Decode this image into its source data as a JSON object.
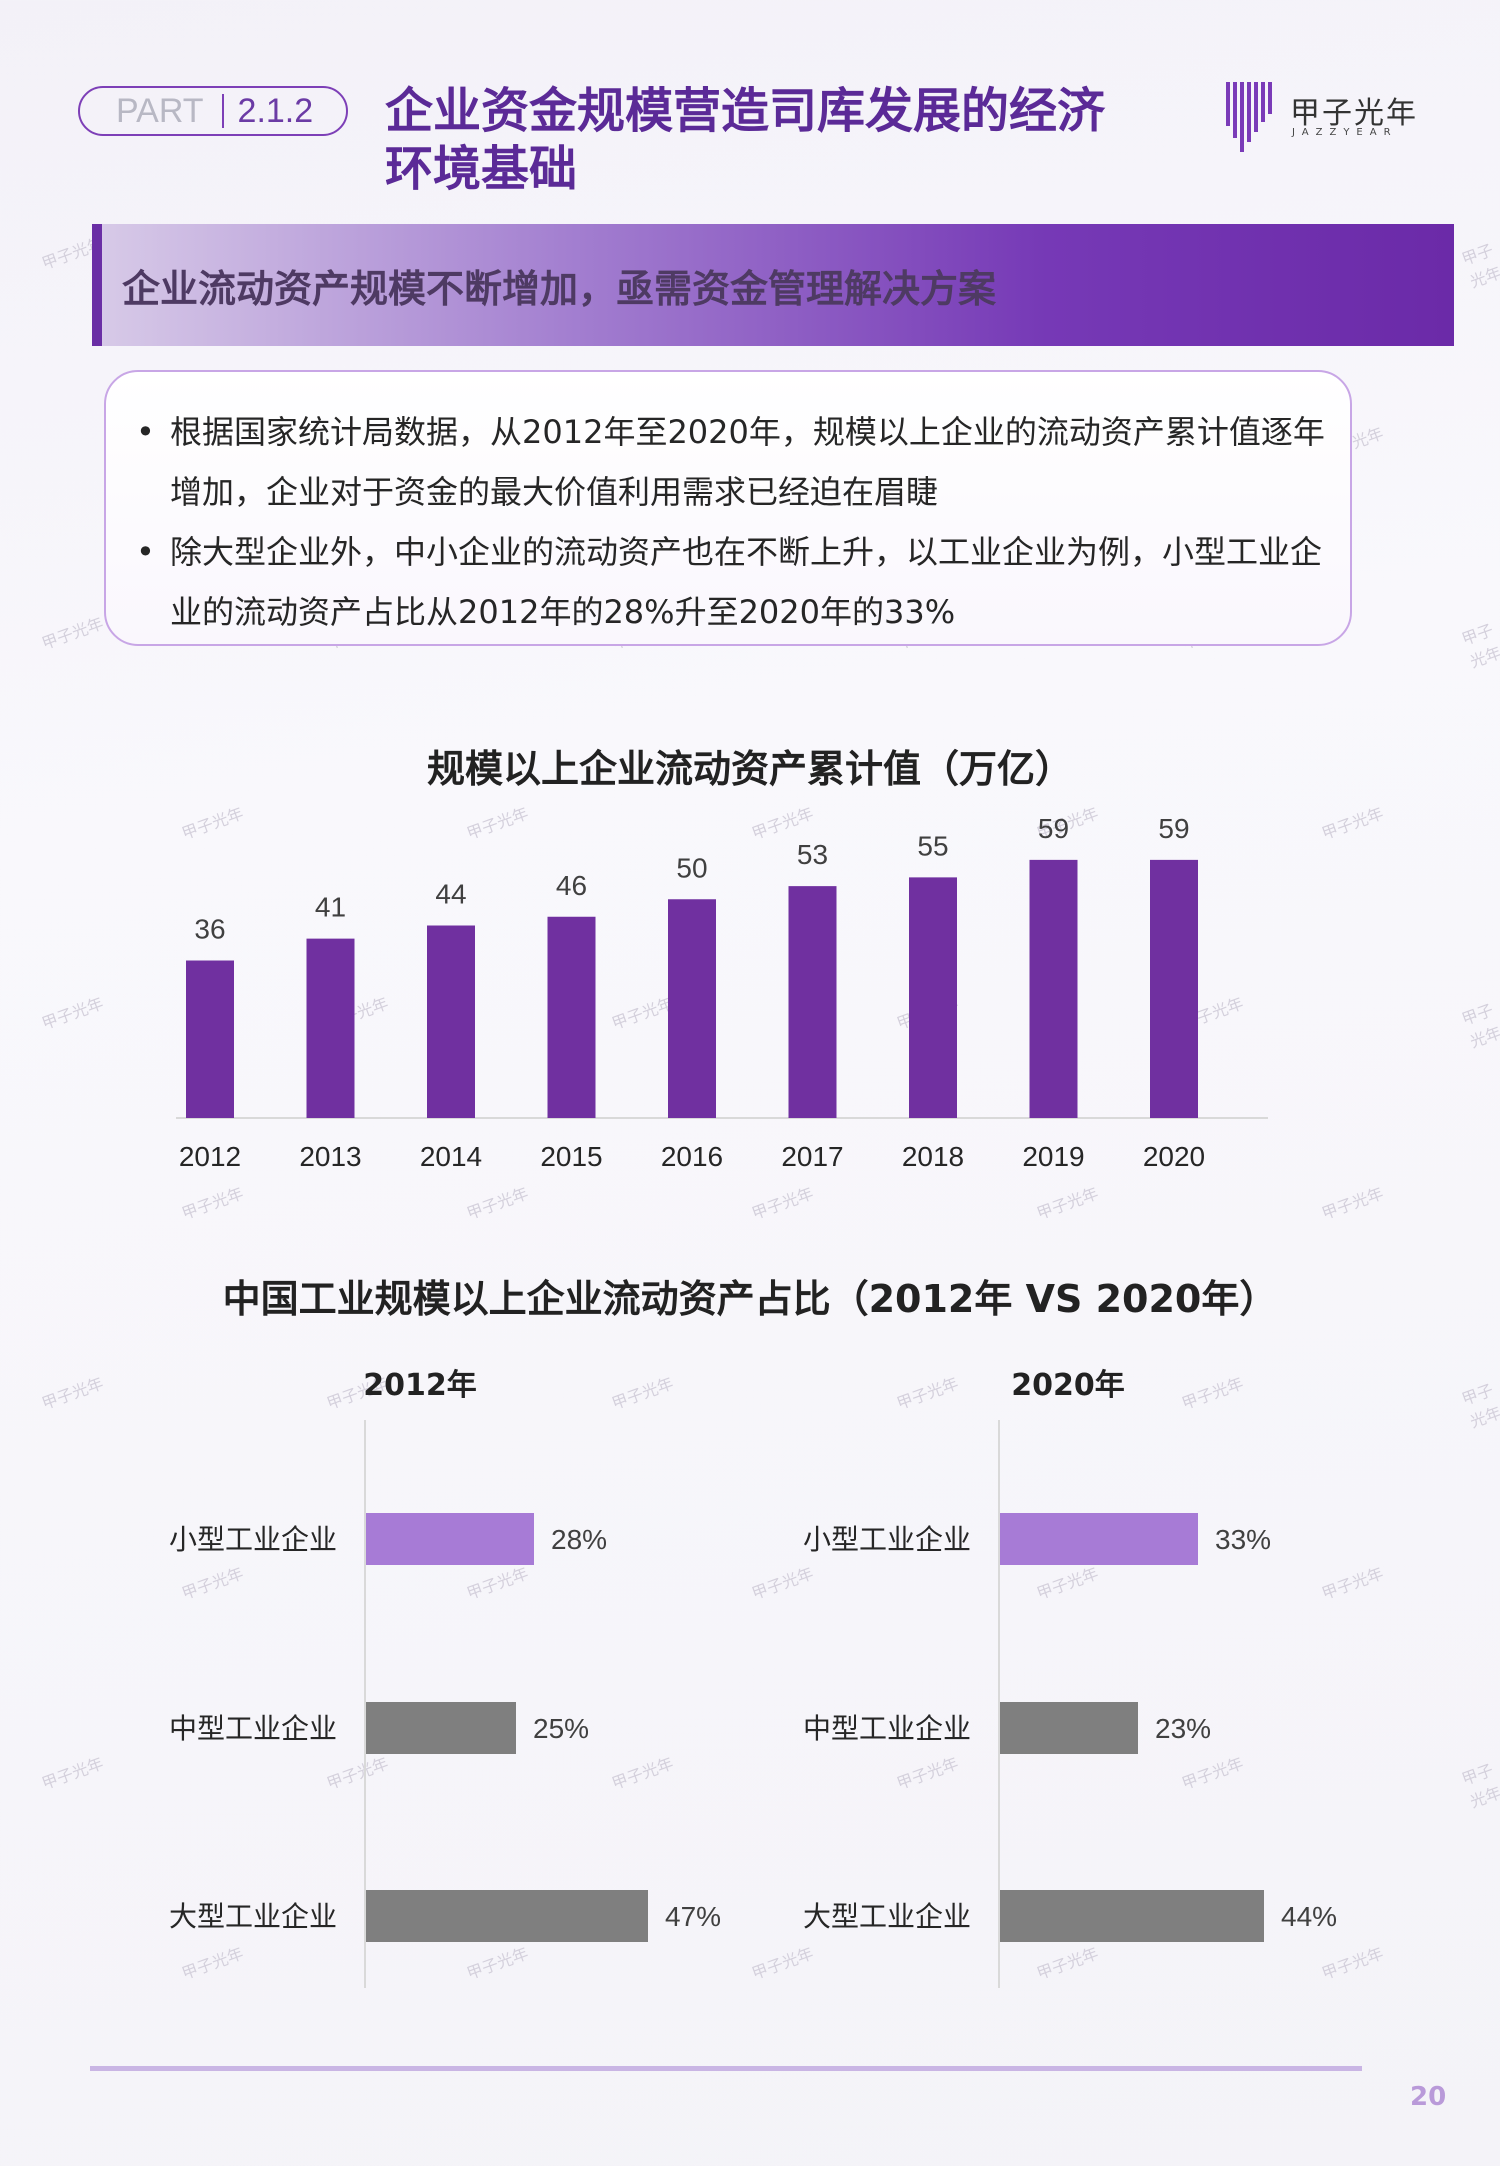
{
  "header": {
    "part_label": "PART",
    "part_number": "2.1.2",
    "title_line1": "企业资金规模营造司库发展的经济",
    "title_line2": "环境基础",
    "logo_cn": "甲子光年",
    "logo_en": "JAZZYEAR"
  },
  "banner": {
    "text": "企业流动资产规模不断增加，亟需资金管理解决方案"
  },
  "bullets": [
    "根据国家统计局数据，从2012年至2020年，规模以上企业的流动资产累计值逐年增加，企业对于资金的最大价值利用需求已经迫在眉睫",
    "除大型企业外，中小企业的流动资产也在不断上升，以工业企业为例，小型工业企业的流动资产占比从2012年的28%升至2020年的33%"
  ],
  "bullet_dot": "•",
  "chart_data": [
    {
      "type": "bar",
      "title": "规模以上企业流动资产累计值（万亿）",
      "categories": [
        "2012",
        "2013",
        "2014",
        "2015",
        "2016",
        "2017",
        "2018",
        "2019",
        "2020"
      ],
      "values": [
        36,
        41,
        44,
        46,
        50,
        53,
        55,
        59,
        59
      ],
      "ylim": [
        0,
        64
      ],
      "color": "#7030a0",
      "grid": false,
      "legend": "none"
    },
    {
      "type": "bar",
      "orientation": "horizontal",
      "title": "中国工业规模以上企业流动资产占比（2012年 VS 2020年）",
      "categories": [
        "小型工业企业",
        "中型工业企业",
        "大型工业企业"
      ],
      "panels": [
        {
          "name": "2012年",
          "values": [
            28,
            25,
            47
          ],
          "labels": [
            "28%",
            "25%",
            "47%"
          ]
        },
        {
          "name": "2020年",
          "values": [
            33,
            23,
            44
          ],
          "labels": [
            "33%",
            "23%",
            "44%"
          ]
        }
      ],
      "xlim": [
        0,
        47
      ],
      "colors": {
        "small": "#a77bd6",
        "other": "#7f7f7f"
      },
      "grid": false,
      "legend": "none"
    }
  ],
  "footer": {
    "page_number": "20"
  },
  "watermark": "甲子光年"
}
